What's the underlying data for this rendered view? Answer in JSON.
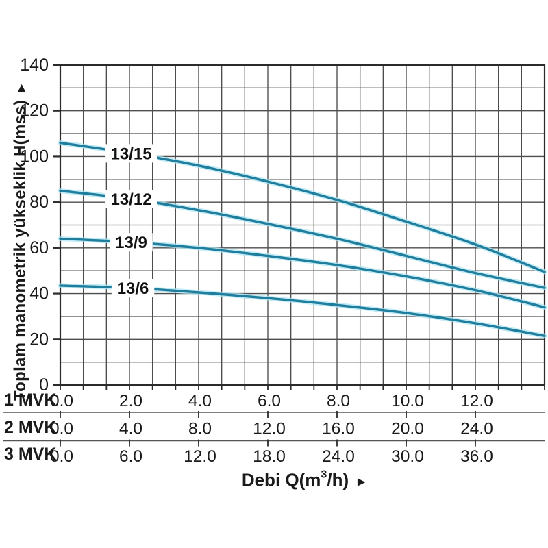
{
  "chart_data": {
    "type": "line",
    "title": "",
    "ylabel": "Toplam manometrik yükseklik H(mss)",
    "xlabel": "Debi Q(m³/h)",
    "xlabel_parts": {
      "pre": "Debi Q(m",
      "sup": "3",
      "post": "/h)"
    },
    "axis_arrow": "►",
    "ylim": [
      0,
      140
    ],
    "y_tick_labels": [
      "0",
      "20",
      "40",
      "60",
      "80",
      "100",
      "120",
      "140"
    ],
    "y_major_step": 20,
    "y_minor_step": 10,
    "x_scale_reference": "1 MVK",
    "x_value_max": 14,
    "x_minor_divisions": 21,
    "x_labeled_every_divisions": 3,
    "grid": true,
    "x_axes": [
      {
        "name": "1 MVK",
        "tick_labels": [
          "0.0",
          "2.0",
          "4.0",
          "6.0",
          "8.0",
          "10.0",
          "12.0"
        ]
      },
      {
        "name": "2 MVK",
        "tick_labels": [
          "0.0",
          "4.0",
          "8.0",
          "12.0",
          "16.0",
          "20.0",
          "24.0"
        ]
      },
      {
        "name": "3 MVK",
        "tick_labels": [
          "0.0",
          "6.0",
          "12.0",
          "18.0",
          "24.0",
          "30.0",
          "36.0"
        ]
      }
    ],
    "series": [
      {
        "name": "13/15",
        "label_at_x": 2.05,
        "points": [
          [
            0,
            106
          ],
          [
            2,
            101.5
          ],
          [
            4,
            96
          ],
          [
            6,
            89
          ],
          [
            8,
            81
          ],
          [
            10,
            71.5
          ],
          [
            12,
            61.5
          ],
          [
            14,
            49.5
          ]
        ]
      },
      {
        "name": "13/12",
        "label_at_x": 2.05,
        "points": [
          [
            0,
            85
          ],
          [
            2,
            81.5
          ],
          [
            4,
            76.5
          ],
          [
            6,
            70.5
          ],
          [
            8,
            64
          ],
          [
            10,
            56.5
          ],
          [
            12,
            49
          ],
          [
            14,
            42.5
          ]
        ]
      },
      {
        "name": "13/9",
        "label_at_x": 2.05,
        "points": [
          [
            0,
            64
          ],
          [
            2,
            62.5
          ],
          [
            4,
            60
          ],
          [
            6,
            56.5
          ],
          [
            8,
            52.5
          ],
          [
            10,
            47.5
          ],
          [
            12,
            41.5
          ],
          [
            14,
            34
          ]
        ]
      },
      {
        "name": "13/6",
        "label_at_x": 2.1,
        "points": [
          [
            0,
            43.5
          ],
          [
            2,
            42.5
          ],
          [
            4,
            40.5
          ],
          [
            6,
            38
          ],
          [
            8,
            35
          ],
          [
            10,
            31.5
          ],
          [
            12,
            27
          ],
          [
            14,
            21.5
          ]
        ]
      }
    ],
    "colors": {
      "curve": "#1f7e9d",
      "curve_halo": "#aee4f2",
      "grid": "#4d4d4d",
      "axis": "#2b2b2b",
      "text": "#1a1a1a",
      "background": "#ffffff"
    }
  }
}
